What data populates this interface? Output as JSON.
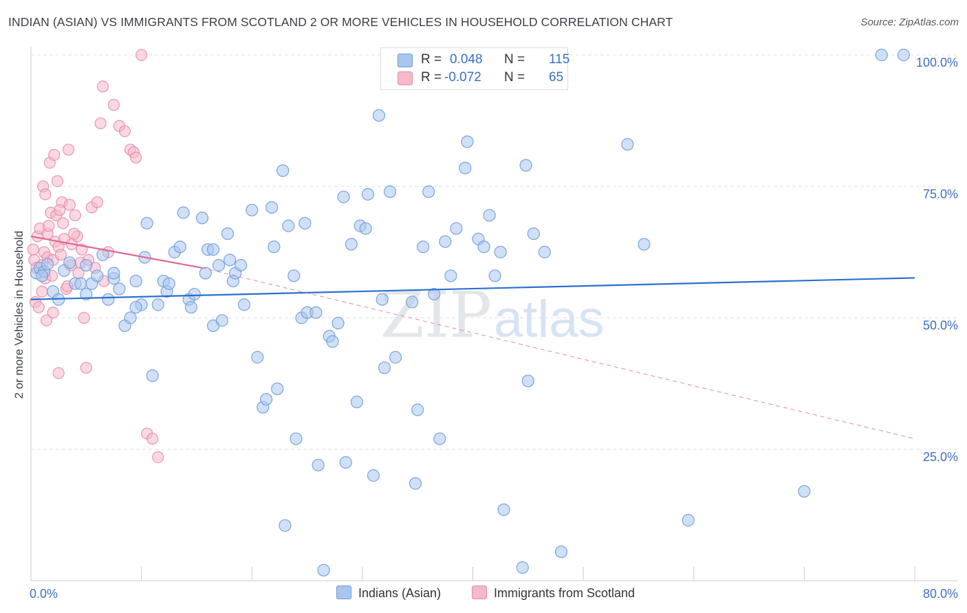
{
  "title": "INDIAN (ASIAN) VS IMMIGRANTS FROM SCOTLAND 2 OR MORE VEHICLES IN HOUSEHOLD CORRELATION CHART",
  "source": "Source: ZipAtlas.com",
  "watermark": {
    "zip": "ZIP",
    "atlas": "atlas"
  },
  "stats": {
    "r_label": "R =",
    "n_label": "N =",
    "series1": {
      "r": "0.048",
      "n": "115"
    },
    "series2": {
      "r": "-0.072",
      "n": "65"
    }
  },
  "legend": {
    "series1": "Indians (Asian)",
    "series2": "Immigrants from Scotland"
  },
  "colors": {
    "blue_fill": "#a9c6ee",
    "blue_stroke": "#6b9bd8",
    "blue_line": "#2a6fd0",
    "pink_fill": "#f6b8cb",
    "pink_stroke": "#e889a8",
    "pink_line": "#e0668f",
    "grid": "#dde1e6",
    "axis_text": "#3f6fc1"
  },
  "chart_data": {
    "type": "scatter",
    "title": "INDIAN (ASIAN) VS IMMIGRANTS FROM SCOTLAND 2 OR MORE VEHICLES IN HOUSEHOLD CORRELATION CHART",
    "xlabel": "",
    "ylabel": "2 or more Vehicles in Household",
    "xlim": [
      0,
      80
    ],
    "ylim": [
      0,
      100
    ],
    "x_tick_labels": [
      {
        "value": 0,
        "label": "0.0%"
      },
      {
        "value": 80,
        "label": "80.0%"
      }
    ],
    "y_tick_labels": [
      {
        "value": 25,
        "label": "25.0%"
      },
      {
        "value": 50,
        "label": "50.0%"
      },
      {
        "value": 75,
        "label": "75.0%"
      },
      {
        "value": 100,
        "label": "100.0%"
      }
    ],
    "series": [
      {
        "name": "Indians (Asian)",
        "r": 0.048,
        "n": 115,
        "trend": {
          "x": [
            0,
            80
          ],
          "y": [
            53.5,
            57.6
          ],
          "dashed_extension": false
        },
        "points": [
          [
            0.5,
            58.5
          ],
          [
            0.8,
            59.5
          ],
          [
            1.2,
            58.8
          ],
          [
            1.5,
            60.2
          ],
          [
            1.0,
            58.0
          ],
          [
            2.0,
            55.0
          ],
          [
            2.5,
            53.5
          ],
          [
            3.0,
            59.0
          ],
          [
            3.5,
            60.5
          ],
          [
            4.0,
            56.5
          ],
          [
            4.5,
            56.5
          ],
          [
            5.0,
            54.5
          ],
          [
            5.5,
            56.5
          ],
          [
            6.0,
            58.0
          ],
          [
            6.5,
            62.0
          ],
          [
            7.0,
            53.5
          ],
          [
            7.5,
            57.5
          ],
          [
            8.0,
            55.5
          ],
          [
            8.5,
            48.5
          ],
          [
            9.0,
            50.0
          ],
          [
            9.5,
            57.0
          ],
          [
            10.0,
            52.5
          ],
          [
            10.3,
            61.5
          ],
          [
            10.5,
            68.0
          ],
          [
            11.0,
            39.0
          ],
          [
            11.5,
            52.5
          ],
          [
            12.0,
            57.0
          ],
          [
            12.3,
            55.0
          ],
          [
            13.0,
            62.5
          ],
          [
            13.5,
            63.5
          ],
          [
            13.8,
            70.0
          ],
          [
            14.3,
            53.5
          ],
          [
            14.5,
            52.0
          ],
          [
            14.8,
            54.5
          ],
          [
            15.5,
            69.0
          ],
          [
            15.8,
            58.5
          ],
          [
            16.0,
            63.0
          ],
          [
            16.5,
            48.5
          ],
          [
            17.0,
            60.0
          ],
          [
            17.3,
            49.5
          ],
          [
            17.8,
            66.0
          ],
          [
            18.0,
            61.0
          ],
          [
            18.3,
            57.0
          ],
          [
            18.5,
            58.5
          ],
          [
            19.0,
            60.0
          ],
          [
            19.3,
            52.5
          ],
          [
            20.0,
            70.5
          ],
          [
            20.5,
            42.5
          ],
          [
            21.0,
            33.0
          ],
          [
            21.3,
            34.5
          ],
          [
            21.8,
            71.0
          ],
          [
            22.0,
            63.5
          ],
          [
            22.3,
            36.5
          ],
          [
            22.8,
            78.0
          ],
          [
            23.0,
            10.5
          ],
          [
            23.3,
            67.5
          ],
          [
            23.8,
            58.0
          ],
          [
            24.0,
            27.0
          ],
          [
            24.5,
            50.0
          ],
          [
            24.8,
            68.0
          ],
          [
            25.0,
            51.0
          ],
          [
            25.8,
            51.0
          ],
          [
            26.0,
            22.0
          ],
          [
            26.5,
            2.0
          ],
          [
            27.0,
            46.5
          ],
          [
            27.3,
            45.5
          ],
          [
            27.8,
            49.0
          ],
          [
            28.3,
            73.0
          ],
          [
            28.5,
            22.5
          ],
          [
            29.0,
            64.0
          ],
          [
            29.5,
            34.0
          ],
          [
            29.8,
            67.5
          ],
          [
            30.3,
            67.0
          ],
          [
            30.5,
            73.5
          ],
          [
            31.0,
            20.0
          ],
          [
            31.5,
            88.5
          ],
          [
            31.8,
            53.5
          ],
          [
            32.0,
            40.5
          ],
          [
            32.5,
            74.0
          ],
          [
            33.0,
            42.5
          ],
          [
            34.5,
            53.0
          ],
          [
            34.8,
            18.5
          ],
          [
            35.0,
            32.5
          ],
          [
            35.5,
            63.5
          ],
          [
            36.0,
            74.0
          ],
          [
            36.5,
            54.5
          ],
          [
            37.0,
            27.0
          ],
          [
            37.5,
            64.5
          ],
          [
            38.0,
            58.0
          ],
          [
            38.5,
            67.0
          ],
          [
            39.3,
            78.5
          ],
          [
            39.5,
            83.5
          ],
          [
            40.5,
            65.0
          ],
          [
            41.0,
            63.5
          ],
          [
            41.5,
            69.5
          ],
          [
            42.0,
            58.0
          ],
          [
            42.5,
            62.5
          ],
          [
            42.8,
            13.5
          ],
          [
            44.5,
            2.5
          ],
          [
            44.8,
            79.0
          ],
          [
            45.0,
            38.0
          ],
          [
            45.5,
            66.0
          ],
          [
            46.5,
            62.5
          ],
          [
            48.0,
            5.5
          ],
          [
            54.0,
            83.0
          ],
          [
            55.5,
            64.0
          ],
          [
            59.5,
            11.5
          ],
          [
            70.0,
            17.0
          ],
          [
            77.0,
            100.0
          ],
          [
            79.0,
            100.0
          ],
          [
            5.0,
            60.0
          ],
          [
            7.5,
            58.5
          ],
          [
            9.5,
            52.0
          ],
          [
            12.5,
            56.5
          ],
          [
            16.5,
            63.0
          ]
        ]
      },
      {
        "name": "Immigrants from Scotland",
        "r": -0.072,
        "n": 65,
        "trend": {
          "x": [
            0,
            15.5
          ],
          "y": [
            65.5,
            59.5
          ],
          "dashed_extension": {
            "x": [
              15.5,
              80
            ],
            "y": [
              59.5,
              27.0
            ]
          }
        },
        "points": [
          [
            0.2,
            63.0
          ],
          [
            0.3,
            61.0
          ],
          [
            0.5,
            59.5
          ],
          [
            0.6,
            65.5
          ],
          [
            0.8,
            67.0
          ],
          [
            1.0,
            60.0
          ],
          [
            1.2,
            62.5
          ],
          [
            1.3,
            57.5
          ],
          [
            1.5,
            61.5
          ],
          [
            1.5,
            66.0
          ],
          [
            1.6,
            67.5
          ],
          [
            1.8,
            70.0
          ],
          [
            2.0,
            61.0
          ],
          [
            2.2,
            64.5
          ],
          [
            2.3,
            69.5
          ],
          [
            2.5,
            63.5
          ],
          [
            2.7,
            62.0
          ],
          [
            2.8,
            72.0
          ],
          [
            3.0,
            65.0
          ],
          [
            3.2,
            55.5
          ],
          [
            3.3,
            56.0
          ],
          [
            3.5,
            71.5
          ],
          [
            3.7,
            64.0
          ],
          [
            4.0,
            69.5
          ],
          [
            4.2,
            65.5
          ],
          [
            4.5,
            60.5
          ],
          [
            4.8,
            50.0
          ],
          [
            5.0,
            40.5
          ],
          [
            5.5,
            71.0
          ],
          [
            6.0,
            72.0
          ],
          [
            6.3,
            87.0
          ],
          [
            6.5,
            94.0
          ],
          [
            7.5,
            90.5
          ],
          [
            8.0,
            86.5
          ],
          [
            8.5,
            85.5
          ],
          [
            9.0,
            82.0
          ],
          [
            9.3,
            81.5
          ],
          [
            9.5,
            80.5
          ],
          [
            10.0,
            100.0
          ],
          [
            10.5,
            28.0
          ],
          [
            11.0,
            27.0
          ],
          [
            11.5,
            23.5
          ],
          [
            1.0,
            55.0
          ],
          [
            1.4,
            49.5
          ],
          [
            2.0,
            51.0
          ],
          [
            2.5,
            39.5
          ],
          [
            0.4,
            53.0
          ],
          [
            0.7,
            52.0
          ],
          [
            1.1,
            75.0
          ],
          [
            1.3,
            73.5
          ],
          [
            1.7,
            79.5
          ],
          [
            2.1,
            81.0
          ],
          [
            2.4,
            76.0
          ],
          [
            2.6,
            70.5
          ],
          [
            2.9,
            68.0
          ],
          [
            3.4,
            82.0
          ],
          [
            3.6,
            60.0
          ],
          [
            3.9,
            66.0
          ],
          [
            4.3,
            58.5
          ],
          [
            4.6,
            63.0
          ],
          [
            5.2,
            61.0
          ],
          [
            5.8,
            59.5
          ],
          [
            6.6,
            57.0
          ],
          [
            7.0,
            62.5
          ],
          [
            1.9,
            58.0
          ]
        ]
      }
    ]
  }
}
